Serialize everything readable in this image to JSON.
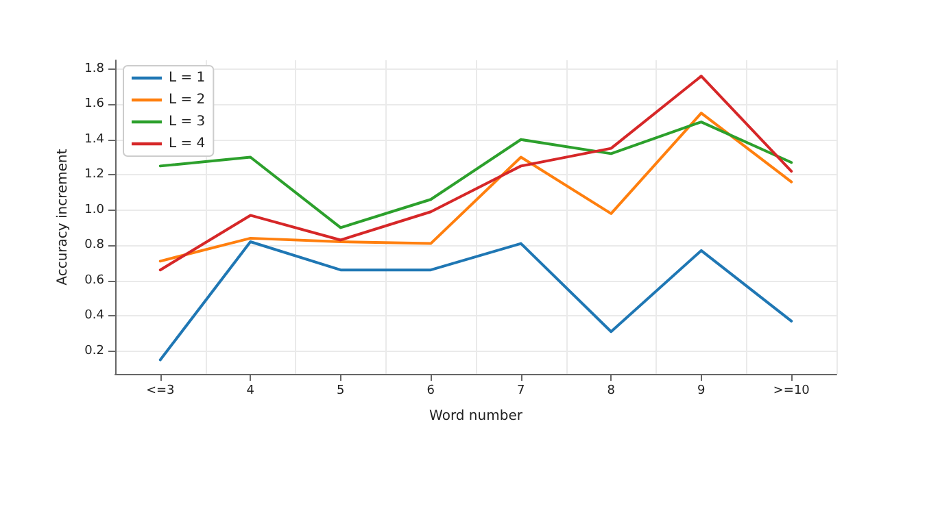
{
  "chart_data": {
    "type": "line",
    "xlabel": "Word number",
    "ylabel": "Accuracy increment",
    "categories": [
      "<=3",
      "4",
      "5",
      "6",
      "7",
      "8",
      "9",
      ">=10"
    ],
    "series": [
      {
        "name": "L = 1",
        "color": "#1f77b4",
        "values": [
          0.15,
          0.82,
          0.66,
          0.66,
          0.81,
          0.31,
          0.77,
          0.37
        ]
      },
      {
        "name": "L = 2",
        "color": "#ff7f0e",
        "values": [
          0.71,
          0.84,
          0.82,
          0.81,
          1.3,
          0.98,
          1.55,
          1.16
        ]
      },
      {
        "name": "L = 3",
        "color": "#2ca02c",
        "values": [
          1.25,
          1.3,
          0.9,
          1.06,
          1.4,
          1.32,
          1.5,
          1.27
        ]
      },
      {
        "name": "L = 4",
        "color": "#d62728",
        "values": [
          0.66,
          0.97,
          0.83,
          0.99,
          1.25,
          1.35,
          1.76,
          1.22
        ]
      }
    ],
    "ylim": [
      0.07,
      1.85
    ],
    "yticks": [
      {
        "value": 0.2,
        "label": "0.2"
      },
      {
        "value": 0.4,
        "label": "0.4"
      },
      {
        "value": 0.6,
        "label": "0.6"
      },
      {
        "value": 0.8,
        "label": "0.8"
      },
      {
        "value": 1.0,
        "label": "1.0"
      },
      {
        "value": 1.2,
        "label": "1.2"
      },
      {
        "value": 1.4,
        "label": "1.4"
      },
      {
        "value": 1.6,
        "label": "1.6"
      },
      {
        "value": 1.8,
        "label": "1.8"
      }
    ],
    "grid": true,
    "legend": "top left",
    "marker": "none",
    "line_style": "solid"
  }
}
